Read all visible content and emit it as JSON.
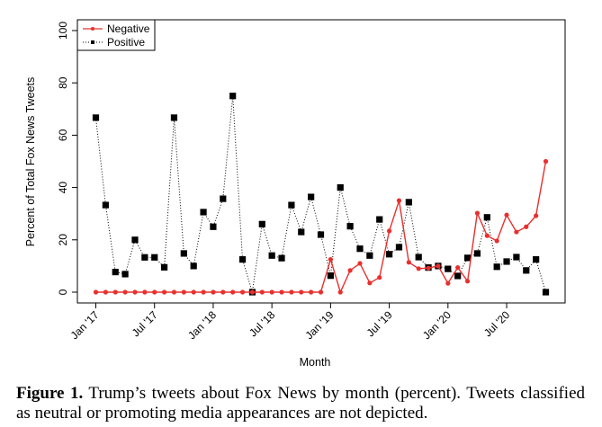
{
  "chart_data": {
    "type": "line",
    "title": "",
    "xlabel": "Month",
    "ylabel": "Percent of Total Fox News Tweets",
    "ylim": [
      0,
      100
    ],
    "yticks": [
      0,
      20,
      40,
      60,
      80,
      100
    ],
    "xtick_labels": [
      "Jan '17",
      "Jul '17",
      "Jan '18",
      "Jul '18",
      "Jan '19",
      "Jul '19",
      "Jan '20",
      "Jul '20"
    ],
    "xtick_month_index": [
      0,
      6,
      12,
      18,
      24,
      30,
      36,
      42
    ],
    "x": [
      "2017-01",
      "2017-02",
      "2017-03",
      "2017-04",
      "2017-05",
      "2017-06",
      "2017-07",
      "2017-08",
      "2017-09",
      "2017-10",
      "2017-11",
      "2017-12",
      "2018-01",
      "2018-02",
      "2018-03",
      "2018-04",
      "2018-05",
      "2018-06",
      "2018-07",
      "2018-08",
      "2018-09",
      "2018-10",
      "2018-11",
      "2018-12",
      "2019-01",
      "2019-02",
      "2019-03",
      "2019-04",
      "2019-05",
      "2019-06",
      "2019-07",
      "2019-08",
      "2019-09",
      "2019-10",
      "2019-11",
      "2019-12",
      "2020-01",
      "2020-02",
      "2020-03",
      "2020-04",
      "2020-05",
      "2020-06",
      "2020-07",
      "2020-08",
      "2020-09",
      "2020-10",
      "2020-11"
    ],
    "grid": false,
    "legend_position": "top-left",
    "series": [
      {
        "name": "Negative",
        "color": "#e8302e",
        "line_style": "solid",
        "marker": "circle",
        "values": [
          0,
          0,
          0,
          0,
          0,
          0,
          0,
          0,
          0,
          0,
          0,
          0,
          0,
          0,
          0,
          0,
          0,
          0,
          0,
          0,
          0,
          0,
          0,
          0,
          12.5,
          0,
          8.3,
          11,
          3.5,
          5.6,
          23.4,
          35,
          11.4,
          9,
          9.2,
          10,
          3.4,
          9.4,
          4.2,
          30.2,
          21.6,
          19.6,
          29.5,
          23,
          25,
          29.2,
          50
        ]
      },
      {
        "name": "Positive",
        "color": "#000000",
        "line_style": "dotted",
        "marker": "square",
        "values": [
          66.7,
          33.3,
          7.7,
          6.9,
          20,
          13.3,
          13.3,
          9.5,
          66.7,
          14.8,
          10,
          30.6,
          25,
          35.7,
          75,
          12.5,
          0,
          26,
          14,
          13,
          33.3,
          23,
          36.4,
          22,
          6.3,
          40,
          25.2,
          16.6,
          14,
          27.8,
          14.5,
          17.2,
          34.4,
          13.4,
          9.4,
          10,
          8.9,
          6.2,
          13.1,
          14.8,
          28.6,
          9.7,
          11.7,
          13.4,
          8.3,
          12.5,
          0
        ]
      }
    ]
  },
  "caption": {
    "label": "Figure 1.",
    "text": " Trump’s tweets about Fox News by month (percent). Tweets classified as neutral or promoting media appearances are not depicted."
  }
}
